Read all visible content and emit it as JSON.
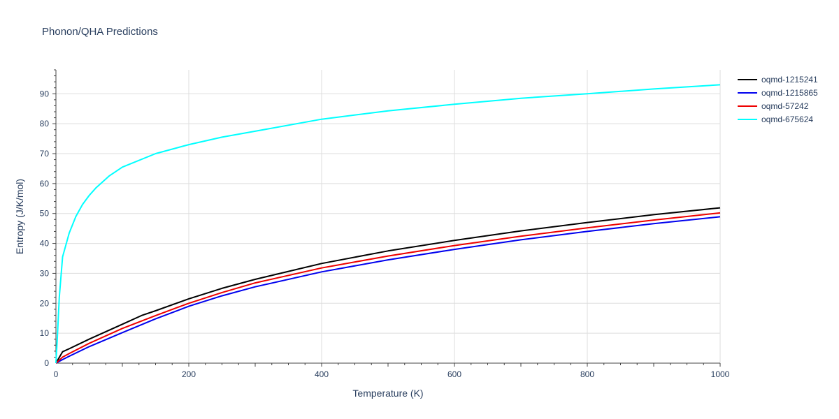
{
  "chart_data": {
    "type": "line",
    "title": "Phonon/QHA Predictions",
    "xlabel": "Temperature (K)",
    "ylabel": "Entropy (J/K/mol)",
    "xlim": [
      0,
      1000
    ],
    "ylim": [
      0,
      98
    ],
    "x_ticks": [
      0,
      200,
      400,
      600,
      800,
      1000
    ],
    "y_ticks": [
      0,
      10,
      20,
      30,
      40,
      50,
      60,
      70,
      80,
      90
    ],
    "grid": true,
    "legend_position": "top-right",
    "series": [
      {
        "name": "oqmd-1215241",
        "color": "#000000",
        "x": [
          0,
          10,
          20,
          50,
          100,
          130,
          150,
          200,
          250,
          300,
          400,
          500,
          600,
          700,
          800,
          900,
          1000
        ],
        "y": [
          0,
          3.8,
          4.8,
          8.0,
          13.0,
          16.0,
          17.5,
          21.5,
          25.0,
          28.0,
          33.3,
          37.5,
          41.0,
          44.2,
          47.0,
          49.6,
          51.9
        ]
      },
      {
        "name": "oqmd-1215865",
        "color": "#0000ee",
        "x": [
          0,
          10,
          20,
          50,
          100,
          150,
          200,
          250,
          300,
          400,
          500,
          600,
          700,
          800,
          900,
          1000
        ],
        "y": [
          0,
          1.2,
          2.3,
          5.5,
          10.2,
          14.8,
          19.0,
          22.5,
          25.5,
          30.5,
          34.5,
          38.0,
          41.2,
          44.0,
          46.6,
          48.9
        ]
      },
      {
        "name": "oqmd-57242",
        "color": "#ee0000",
        "x": [
          0,
          10,
          20,
          50,
          100,
          150,
          200,
          250,
          300,
          400,
          500,
          600,
          700,
          800,
          900,
          1000
        ],
        "y": [
          0,
          2.0,
          3.2,
          6.6,
          11.6,
          15.9,
          20.0,
          23.6,
          26.8,
          31.8,
          35.8,
          39.3,
          42.4,
          45.2,
          47.8,
          50.2
        ]
      },
      {
        "name": "oqmd-675624",
        "color": "#00ffff",
        "x": [
          0,
          2,
          5,
          10,
          20,
          30,
          40,
          50,
          60,
          80,
          100,
          150,
          200,
          250,
          300,
          400,
          500,
          600,
          700,
          800,
          900,
          1000
        ],
        "y": [
          0,
          8,
          22,
          35.5,
          43.5,
          49.0,
          53.0,
          56.0,
          58.5,
          62.5,
          65.5,
          70.0,
          73.0,
          75.5,
          77.5,
          81.5,
          84.3,
          86.5,
          88.5,
          90.0,
          91.6,
          93.0
        ]
      }
    ]
  }
}
